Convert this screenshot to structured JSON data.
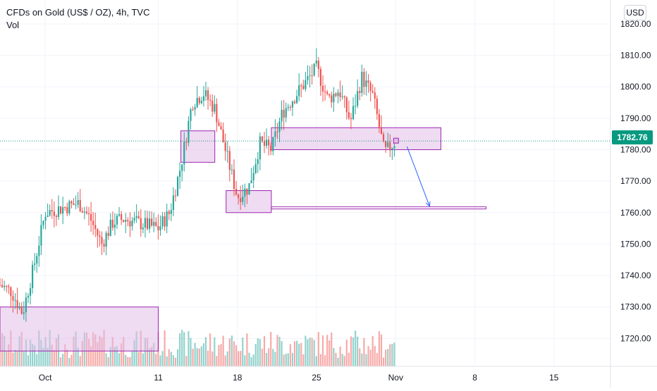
{
  "header": {
    "title": "CFDs on Gold (US$ / OZ), 4h, TVC",
    "volume_label": "Vol",
    "currency_button": "USD"
  },
  "colors": {
    "up": "#26a69a",
    "down": "#ef5350",
    "zone_fill": "#e1bee7",
    "zone_stroke": "#9c27b0",
    "arrow": "#2962ff",
    "last_price_line": "#089981"
  },
  "chart_data": {
    "type": "candlestick",
    "title": "CFDs on Gold (US$ / OZ), 4h, TVC",
    "ylim": [
      1710,
      1822
    ],
    "y_ticks": [
      "1720.00",
      "1730.00",
      "1740.00",
      "1750.00",
      "1760.00",
      "1770.00",
      "1780.00",
      "1790.00",
      "1800.00",
      "1810.00",
      "1820.00"
    ],
    "x_ticks": [
      {
        "label": "Oct",
        "date": "2021-10-01"
      },
      {
        "label": "11",
        "date": "2021-10-11"
      },
      {
        "label": "18",
        "date": "2021-10-18"
      },
      {
        "label": "25",
        "date": "2021-10-25"
      },
      {
        "label": "Nov",
        "date": "2021-11-01"
      },
      {
        "label": "8",
        "date": "2021-11-08"
      },
      {
        "label": "15",
        "date": "2021-11-15"
      }
    ],
    "x_range": [
      "2021-09-27",
      "2021-11-20"
    ],
    "last_price": "1782.76",
    "grid": true,
    "price_path": [
      {
        "date": "2021-09-27",
        "price": 1737
      },
      {
        "date": "2021-09-28",
        "price": 1735
      },
      {
        "date": "2021-09-29",
        "price": 1728
      },
      {
        "date": "2021-09-30",
        "price": 1743
      },
      {
        "date": "2021-10-01",
        "price": 1760
      },
      {
        "date": "2021-10-04",
        "price": 1763
      },
      {
        "date": "2021-10-05",
        "price": 1758
      },
      {
        "date": "2021-10-06",
        "price": 1750
      },
      {
        "date": "2021-10-07",
        "price": 1757
      },
      {
        "date": "2021-10-08",
        "price": 1758
      },
      {
        "date": "2021-10-11",
        "price": 1755
      },
      {
        "date": "2021-10-12",
        "price": 1760
      },
      {
        "date": "2021-10-13",
        "price": 1775
      },
      {
        "date": "2021-10-14",
        "price": 1795
      },
      {
        "date": "2021-10-15",
        "price": 1798
      },
      {
        "date": "2021-10-16",
        "price": 1793
      },
      {
        "date": "2021-10-18",
        "price": 1765
      },
      {
        "date": "2021-10-19",
        "price": 1768
      },
      {
        "date": "2021-10-20",
        "price": 1782
      },
      {
        "date": "2021-10-21",
        "price": 1780
      },
      {
        "date": "2021-10-22",
        "price": 1792
      },
      {
        "date": "2021-10-25",
        "price": 1806
      },
      {
        "date": "2021-10-26",
        "price": 1796
      },
      {
        "date": "2021-10-27",
        "price": 1799
      },
      {
        "date": "2021-10-28",
        "price": 1789
      },
      {
        "date": "2021-10-29",
        "price": 1803
      },
      {
        "date": "2021-10-30",
        "price": 1797
      },
      {
        "date": "2021-10-31",
        "price": 1779
      },
      {
        "date": "2021-11-01",
        "price": 1782.76
      }
    ],
    "zones": [
      {
        "start": "2021-09-27",
        "end": "2021-10-11",
        "low": 1716,
        "high": 1730
      },
      {
        "start": "2021-10-13",
        "end": "2021-10-16",
        "low": 1776,
        "high": 1786
      },
      {
        "start": "2021-10-17",
        "end": "2021-10-21",
        "low": 1760,
        "high": 1767
      },
      {
        "start": "2021-10-21",
        "end": "2021-11-05",
        "low": 1780,
        "high": 1787
      }
    ],
    "target_line": {
      "start": "2021-10-21",
      "end": "2021-11-09",
      "price": 1761.5
    },
    "projection": {
      "from": {
        "date": "2021-11-02",
        "price": 1781
      },
      "to": {
        "date": "2021-11-04",
        "price": 1762
      }
    }
  }
}
